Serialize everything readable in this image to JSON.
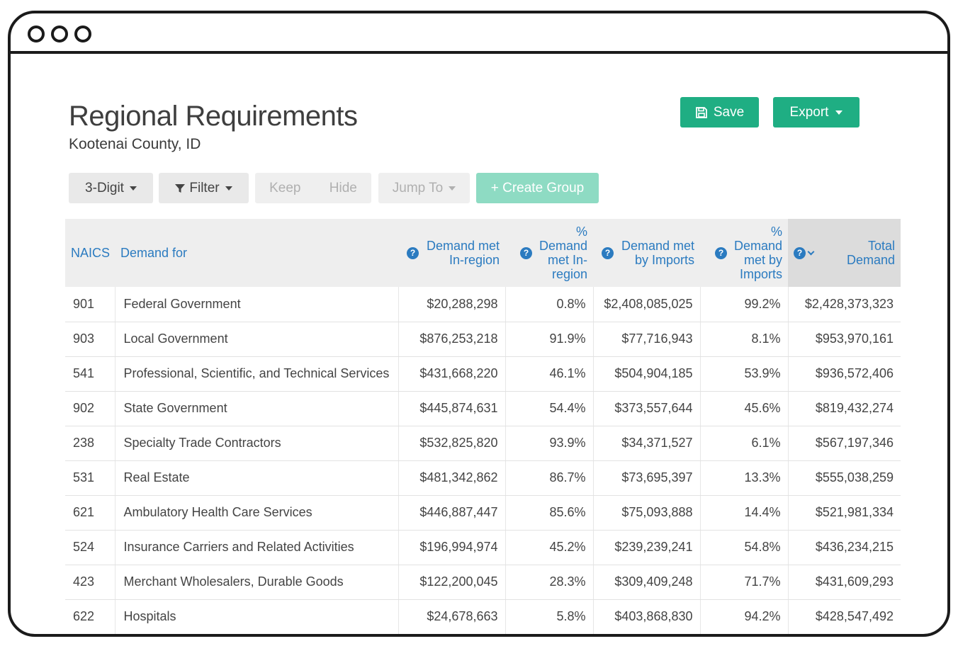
{
  "header": {
    "title": "Regional Requirements",
    "subtitle": "Kootenai County, ID"
  },
  "actions": {
    "save_label": "Save",
    "export_label": "Export"
  },
  "toolbar": {
    "digit_label": "3-Digit",
    "filter_label": "Filter",
    "keep_label": "Keep",
    "hide_label": "Hide",
    "jump_label": "Jump To",
    "create_group_label": "+ Create Group"
  },
  "table": {
    "columns": {
      "naics": "NAICS",
      "demand_for": "Demand for",
      "met_in_region": "Demand met In-region",
      "pct_met_in_region": "% Demand met In-region",
      "met_by_imports": "Demand met by Imports",
      "pct_met_by_imports": "% Demand met by Imports",
      "total_demand": "Total Demand"
    },
    "rows": [
      {
        "naics": "901",
        "name": "Federal Government",
        "in_region": "$20,288,298",
        "pct_in": "0.8%",
        "imports": "$2,408,085,025",
        "pct_imp": "99.2%",
        "total": "$2,428,373,323"
      },
      {
        "naics": "903",
        "name": "Local Government",
        "in_region": "$876,253,218",
        "pct_in": "91.9%",
        "imports": "$77,716,943",
        "pct_imp": "8.1%",
        "total": "$953,970,161"
      },
      {
        "naics": "541",
        "name": "Professional, Scientific, and Technical Services",
        "in_region": "$431,668,220",
        "pct_in": "46.1%",
        "imports": "$504,904,185",
        "pct_imp": "53.9%",
        "total": "$936,572,406"
      },
      {
        "naics": "902",
        "name": "State Government",
        "in_region": "$445,874,631",
        "pct_in": "54.4%",
        "imports": "$373,557,644",
        "pct_imp": "45.6%",
        "total": "$819,432,274"
      },
      {
        "naics": "238",
        "name": "Specialty Trade Contractors",
        "in_region": "$532,825,820",
        "pct_in": "93.9%",
        "imports": "$34,371,527",
        "pct_imp": "6.1%",
        "total": "$567,197,346"
      },
      {
        "naics": "531",
        "name": "Real Estate",
        "in_region": "$481,342,862",
        "pct_in": "86.7%",
        "imports": "$73,695,397",
        "pct_imp": "13.3%",
        "total": "$555,038,259"
      },
      {
        "naics": "621",
        "name": "Ambulatory Health Care Services",
        "in_region": "$446,887,447",
        "pct_in": "85.6%",
        "imports": "$75,093,888",
        "pct_imp": "14.4%",
        "total": "$521,981,334"
      },
      {
        "naics": "524",
        "name": "Insurance Carriers and Related Activities",
        "in_region": "$196,994,974",
        "pct_in": "45.2%",
        "imports": "$239,239,241",
        "pct_imp": "54.8%",
        "total": "$436,234,215"
      },
      {
        "naics": "423",
        "name": "Merchant Wholesalers, Durable Goods",
        "in_region": "$122,200,045",
        "pct_in": "28.3%",
        "imports": "$309,409,248",
        "pct_imp": "71.7%",
        "total": "$431,609,293"
      },
      {
        "naics": "622",
        "name": "Hospitals",
        "in_region": "$24,678,663",
        "pct_in": "5.8%",
        "imports": "$403,868,830",
        "pct_imp": "94.2%",
        "total": "$428,547,492"
      }
    ]
  },
  "icons": {
    "save": "floppy-disk-icon",
    "filter": "funnel-icon",
    "help": "question-circle-icon",
    "dropdown": "caret-down-icon"
  },
  "colors": {
    "accent_green": "#1fae83",
    "create_group_green": "#8edbc3",
    "header_link_blue": "#2b7bc0"
  }
}
